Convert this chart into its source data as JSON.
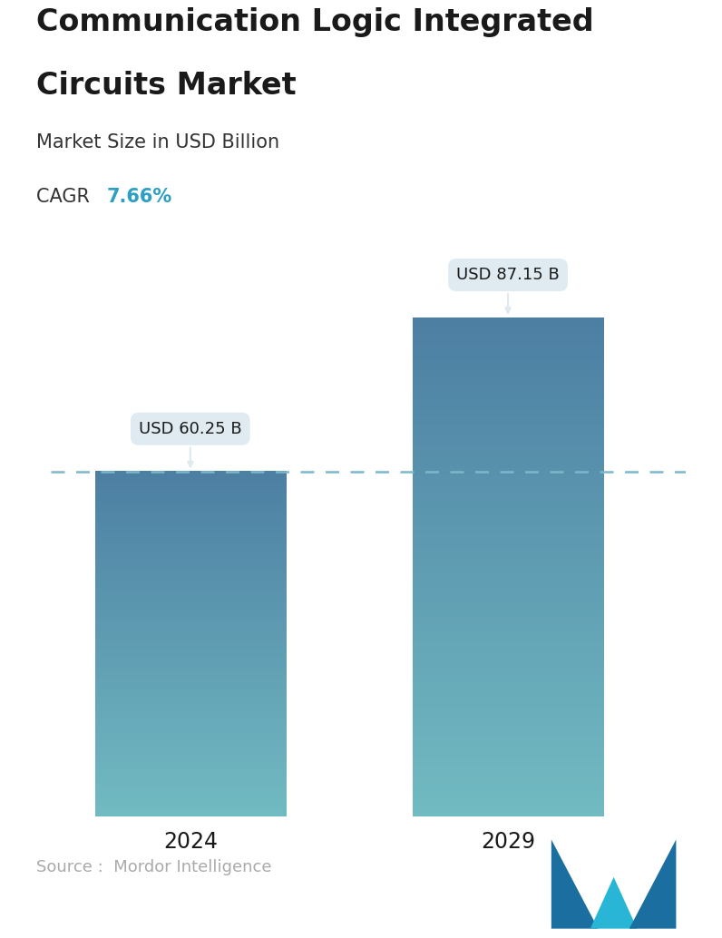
{
  "title_line1": "Communication Logic Integrated",
  "title_line2": "Circuits Market",
  "subtitle": "Market Size in USD Billion",
  "cagr_label": "CAGR",
  "cagr_value": "7.66%",
  "cagr_color": "#2e9fc4",
  "categories": [
    "2024",
    "2029"
  ],
  "values": [
    60.25,
    87.15
  ],
  "bar_labels": [
    "USD 60.25 B",
    "USD 87.15 B"
  ],
  "bar_top_color": "#4d7fa3",
  "bar_bottom_color": "#72bbc2",
  "dashed_line_color": "#7ab8cc",
  "source_text": "Source :  Mordor Intelligence",
  "source_color": "#aaaaaa",
  "bg_color": "#ffffff",
  "title_color": "#1a1a1a",
  "subtitle_color": "#333333",
  "label_box_color": "#ddeaf0",
  "label_text_color": "#1a1a1a",
  "tick_label_color": "#1a1a1a",
  "ylim_max": 100,
  "logo_left_color": "#1a6fa0",
  "logo_mid_color": "#29b5d5",
  "logo_right_color": "#1a6fa0"
}
